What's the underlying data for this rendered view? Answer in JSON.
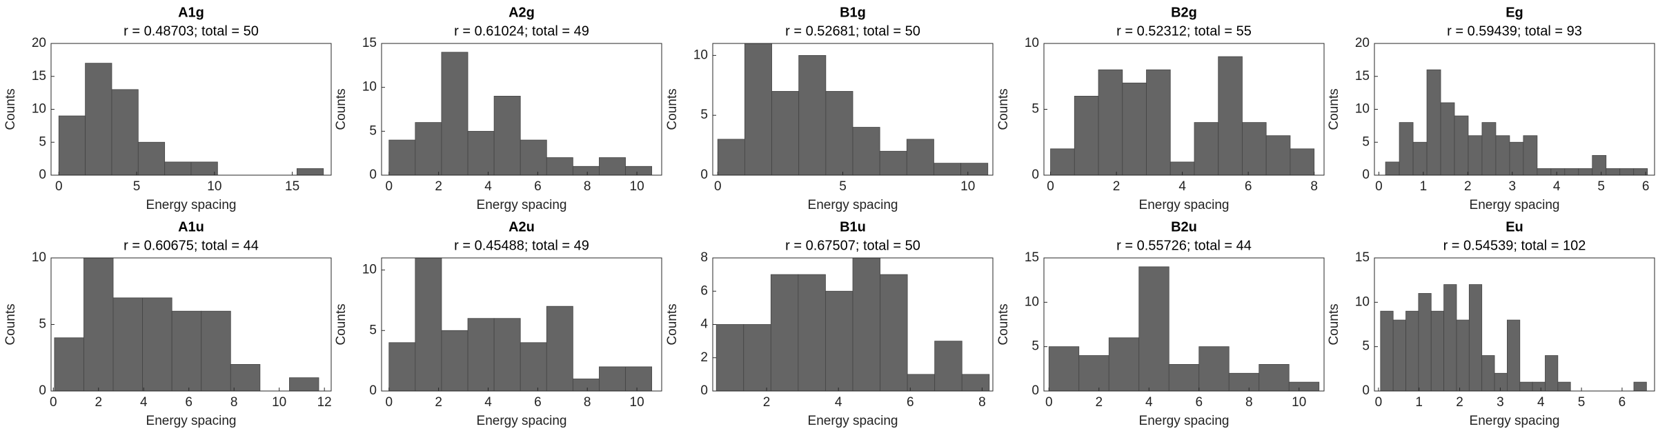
{
  "chart_data": [
    {
      "type": "histogram",
      "title": "A1g",
      "subtitle": "r = 0.48703; total = 50",
      "xlabel": "Energy spacing",
      "ylabel": "Counts",
      "color": "#656565",
      "bins": [
        0,
        1.7,
        3.4,
        5.1,
        6.8,
        8.5,
        10.2,
        11.9,
        13.6,
        15.3,
        17
      ],
      "values": [
        9,
        17,
        13,
        5,
        2,
        2,
        0,
        0,
        0,
        1
      ],
      "xlim": [
        -0.5,
        17.5
      ],
      "xticks": [
        0,
        5,
        10,
        15
      ],
      "ylim": [
        0,
        20
      ],
      "yticks": [
        0,
        5,
        10,
        15,
        20
      ]
    },
    {
      "type": "histogram",
      "title": "A2g",
      "subtitle": "r = 0.61024; total = 49",
      "xlabel": "Energy spacing",
      "ylabel": "Counts",
      "color": "#656565",
      "bins": [
        0,
        1.06,
        2.12,
        3.18,
        4.24,
        5.3,
        6.36,
        7.42,
        8.48,
        9.54,
        10.6
      ],
      "values": [
        4,
        6,
        14,
        5,
        9,
        4,
        2,
        1,
        2,
        1
      ],
      "xlim": [
        -0.3,
        11
      ],
      "xticks": [
        0,
        2,
        4,
        6,
        8,
        10
      ],
      "ylim": [
        0,
        15
      ],
      "yticks": [
        0,
        5,
        10,
        15
      ]
    },
    {
      "type": "histogram",
      "title": "B1g",
      "subtitle": "r = 0.52681; total = 50",
      "xlabel": "Energy spacing",
      "ylabel": "Counts",
      "color": "#656565",
      "bins": [
        0,
        1.08,
        2.16,
        3.24,
        4.32,
        5.4,
        6.48,
        7.56,
        8.64,
        9.72,
        10.8
      ],
      "values": [
        3,
        11,
        7,
        10,
        7,
        4,
        2,
        3,
        1,
        1
      ],
      "xlim": [
        -0.2,
        11
      ],
      "xticks": [
        0,
        5,
        10
      ],
      "ylim": [
        0,
        11
      ],
      "yticks": [
        0,
        5,
        10
      ]
    },
    {
      "type": "histogram",
      "title": "B2g",
      "subtitle": "r = 0.52312; total = 55",
      "xlabel": "Energy spacing",
      "ylabel": "Counts",
      "color": "#656565",
      "bins": [
        0,
        0.727,
        1.455,
        2.182,
        2.909,
        3.636,
        4.364,
        5.091,
        5.818,
        6.545,
        7.273,
        8
      ],
      "values": [
        2,
        6,
        8,
        7,
        8,
        1,
        4,
        9,
        4,
        3,
        2
      ],
      "xlim": [
        -0.2,
        8.3
      ],
      "xticks": [
        0,
        2,
        4,
        6,
        8
      ],
      "ylim": [
        0,
        10
      ],
      "yticks": [
        0,
        5,
        10
      ]
    },
    {
      "type": "histogram",
      "title": "Eg",
      "subtitle": "r = 0.59439; total = 93",
      "xlabel": "Energy spacing",
      "ylabel": "Counts",
      "color": "#656565",
      "bins": [
        0.15,
        0.46,
        0.77,
        1.08,
        1.39,
        1.7,
        2.01,
        2.32,
        2.63,
        2.94,
        3.25,
        3.56,
        3.87,
        4.18,
        4.49,
        4.8,
        5.11,
        5.42,
        5.73,
        6.04
      ],
      "values": [
        2,
        8,
        5,
        16,
        11,
        9,
        6,
        8,
        6,
        5,
        6,
        1,
        1,
        1,
        1,
        3,
        1,
        1,
        1
      ],
      "xlim": [
        -0.1,
        6.2
      ],
      "xticks": [
        0,
        1,
        2,
        3,
        4,
        5,
        6
      ],
      "ylim": [
        0,
        20
      ],
      "yticks": [
        0,
        5,
        10,
        15,
        20
      ]
    },
    {
      "type": "histogram",
      "title": "A1u",
      "subtitle": "r = 0.60675; total = 44",
      "xlabel": "Energy spacing",
      "ylabel": "Counts",
      "color": "#656565",
      "bins": [
        0.05,
        1.35,
        2.65,
        3.95,
        5.25,
        6.55,
        7.85,
        9.15,
        10.45,
        11.75
      ],
      "values": [
        4,
        10,
        7,
        7,
        6,
        6,
        2,
        0,
        1
      ],
      "xlim": [
        -0.1,
        12.3
      ],
      "xticks": [
        0,
        2,
        4,
        6,
        8,
        10,
        12
      ],
      "ylim": [
        0,
        10
      ],
      "yticks": [
        0,
        5,
        10
      ]
    },
    {
      "type": "histogram",
      "title": "A2u",
      "subtitle": "r = 0.45488; total = 49",
      "xlabel": "Energy spacing",
      "ylabel": "Counts",
      "color": "#656565",
      "bins": [
        0,
        1.06,
        2.12,
        3.18,
        4.24,
        5.3,
        6.36,
        7.42,
        8.48,
        9.54,
        10.6
      ],
      "values": [
        4,
        11,
        5,
        6,
        6,
        4,
        7,
        1,
        2,
        2
      ],
      "xlim": [
        -0.3,
        11
      ],
      "xticks": [
        0,
        2,
        4,
        6,
        8,
        10
      ],
      "ylim": [
        0,
        11
      ],
      "yticks": [
        0,
        5,
        10
      ]
    },
    {
      "type": "histogram",
      "title": "B1u",
      "subtitle": "r = 0.67507; total = 50",
      "xlabel": "Energy spacing",
      "ylabel": "Counts",
      "color": "#656565",
      "bins": [
        0.6,
        1.36,
        2.12,
        2.88,
        3.64,
        4.4,
        5.16,
        5.92,
        6.68,
        7.44,
        8.2
      ],
      "values": [
        4,
        4,
        7,
        7,
        6,
        8,
        7,
        1,
        3,
        1
      ],
      "xlim": [
        0.5,
        8.3
      ],
      "xticks": [
        2,
        4,
        6,
        8
      ],
      "ylim": [
        0,
        8
      ],
      "yticks": [
        0,
        2,
        4,
        6,
        8
      ]
    },
    {
      "type": "histogram",
      "title": "B2u",
      "subtitle": "r = 0.55726; total = 44",
      "xlabel": "Energy spacing",
      "ylabel": "Counts",
      "color": "#656565",
      "bins": [
        0,
        1.2,
        2.4,
        3.6,
        4.8,
        6,
        7.2,
        8.4,
        9.6,
        10.8
      ],
      "values": [
        5,
        4,
        6,
        14,
        3,
        5,
        2,
        3,
        1
      ],
      "xlim": [
        -0.2,
        11
      ],
      "xticks": [
        0,
        2,
        4,
        6,
        8,
        10
      ],
      "ylim": [
        0,
        15
      ],
      "yticks": [
        0,
        5,
        10,
        15
      ]
    },
    {
      "type": "histogram",
      "title": "Eu",
      "subtitle": "r = 0.54539; total = 102",
      "xlabel": "Energy spacing",
      "ylabel": "Counts",
      "color": "#656565",
      "bins": [
        0.05,
        0.362,
        0.674,
        0.986,
        1.298,
        1.61,
        1.922,
        2.234,
        2.546,
        2.858,
        3.17,
        3.482,
        3.794,
        4.106,
        4.418,
        4.73,
        5.042,
        5.354,
        5.666,
        5.978,
        6.29,
        6.602
      ],
      "values": [
        9,
        8,
        9,
        11,
        9,
        12,
        8,
        12,
        4,
        2,
        8,
        1,
        1,
        4,
        1,
        0,
        0,
        0,
        0,
        0,
        1
      ],
      "xlim": [
        -0.1,
        6.8
      ],
      "xticks": [
        0,
        1,
        2,
        3,
        4,
        5,
        6
      ],
      "ylim": [
        0,
        15
      ],
      "yticks": [
        0,
        5,
        10,
        15
      ]
    }
  ]
}
